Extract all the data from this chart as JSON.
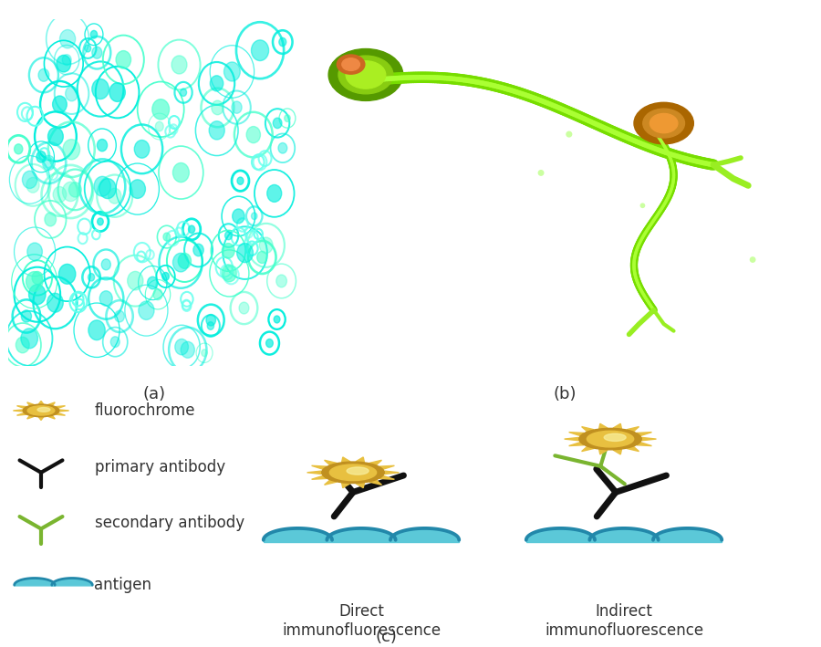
{
  "bg_color": "#ffffff",
  "label_a": "(a)",
  "label_b": "(b)",
  "label_c": "(c)",
  "legend_items": [
    "fluorochrome",
    "primary antibody",
    "secondary antibody",
    "antigen"
  ],
  "direct_label": "Direct\nimmunofluorescence",
  "indirect_label": "Indirect\nimmunofluorescence",
  "cyan_color": "#5bc8d8",
  "cyan_dark": "#2288aa",
  "black_antibody": "#111111",
  "green_antibody": "#7ab530",
  "sun_yellow": "#e8c040",
  "sun_orange": "#c8900a",
  "text_color": "#333333",
  "font_size_label": 13,
  "font_size_legend": 12
}
